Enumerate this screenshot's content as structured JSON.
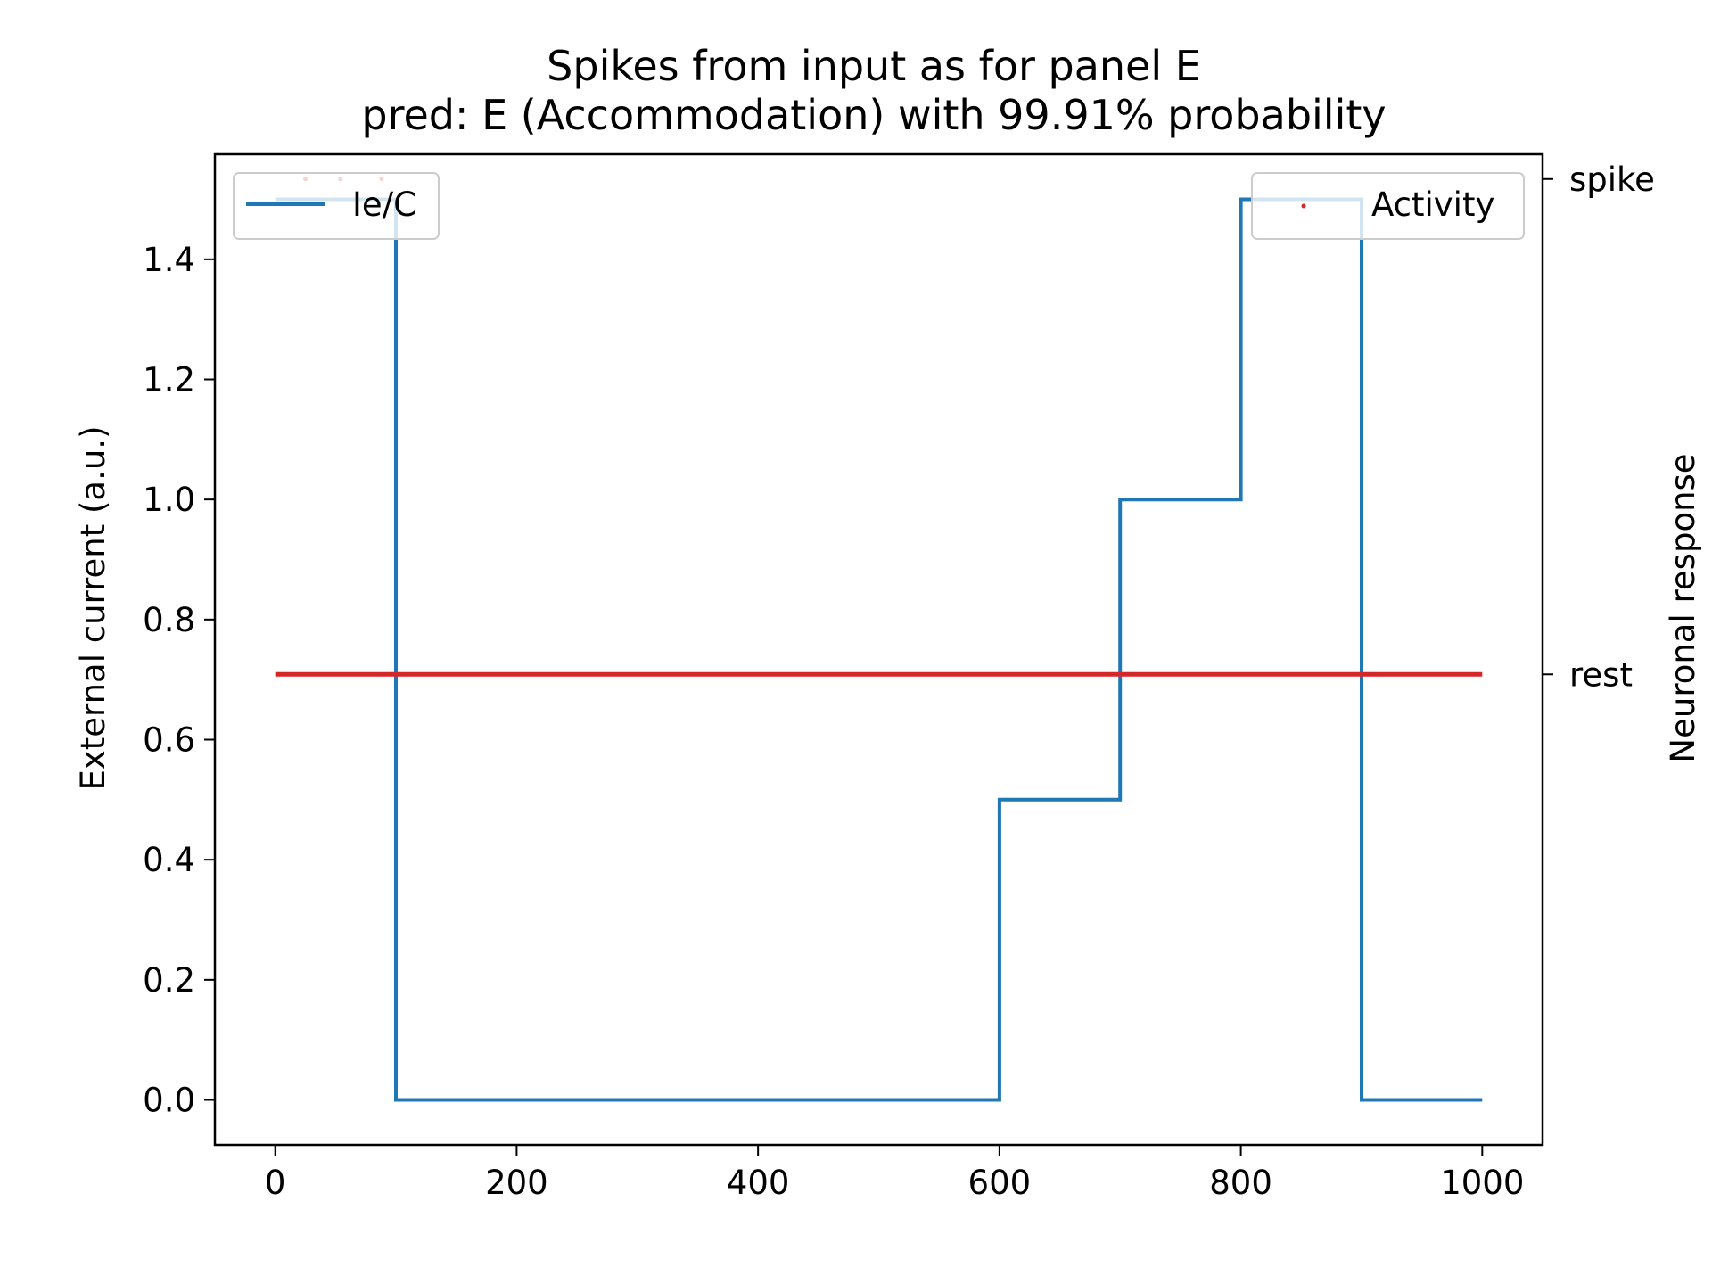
{
  "chart_data": {
    "type": "line",
    "title": "Spikes from input as for panel E",
    "subtitle": "pred: E (Accommodation) with 99.91% probability",
    "xlabel": "",
    "ylabel": "External current (a.u.)",
    "y2label": "Neuronal response",
    "xlim": [
      -50,
      1050
    ],
    "ylim": [
      -0.075,
      1.575
    ],
    "x_ticks": [
      0,
      200,
      400,
      600,
      800,
      1000
    ],
    "y_ticks": [
      0.0,
      0.2,
      0.4,
      0.6,
      0.8,
      1.0,
      1.2,
      1.4
    ],
    "x_tick_labels": [
      "0",
      "200",
      "400",
      "600",
      "800",
      "1000"
    ],
    "y_tick_labels": [
      "0.0",
      "0.2",
      "0.4",
      "0.6",
      "0.8",
      "1.0",
      "1.2",
      "1.4"
    ],
    "y2_ticks": [
      {
        "label": "rest",
        "value": 0
      },
      {
        "label": "spike",
        "value": 1
      }
    ],
    "y2lim": [
      -0.95,
      1.05
    ],
    "grid": false,
    "series": [
      {
        "name": "Ie/C",
        "axis": "left",
        "style": "step-line",
        "color": "#1f77b4",
        "x": [
          0,
          100,
          100,
          600,
          600,
          700,
          700,
          800,
          800,
          900,
          900,
          1000
        ],
        "y": [
          1.5,
          1.5,
          0.0,
          0.0,
          0.5,
          0.5,
          1.0,
          1.0,
          1.5,
          1.5,
          0.0,
          0.0
        ]
      },
      {
        "name": "Activity",
        "axis": "right",
        "style": "dots",
        "color": "#d62728",
        "rest_range": [
          0,
          1000
        ],
        "spikes_x": [
          25,
          54,
          88
        ]
      }
    ],
    "legends": [
      {
        "entries": [
          "Ie/C"
        ],
        "placement": "upper left"
      },
      {
        "entries": [
          "Activity"
        ],
        "placement": "upper right"
      }
    ]
  }
}
